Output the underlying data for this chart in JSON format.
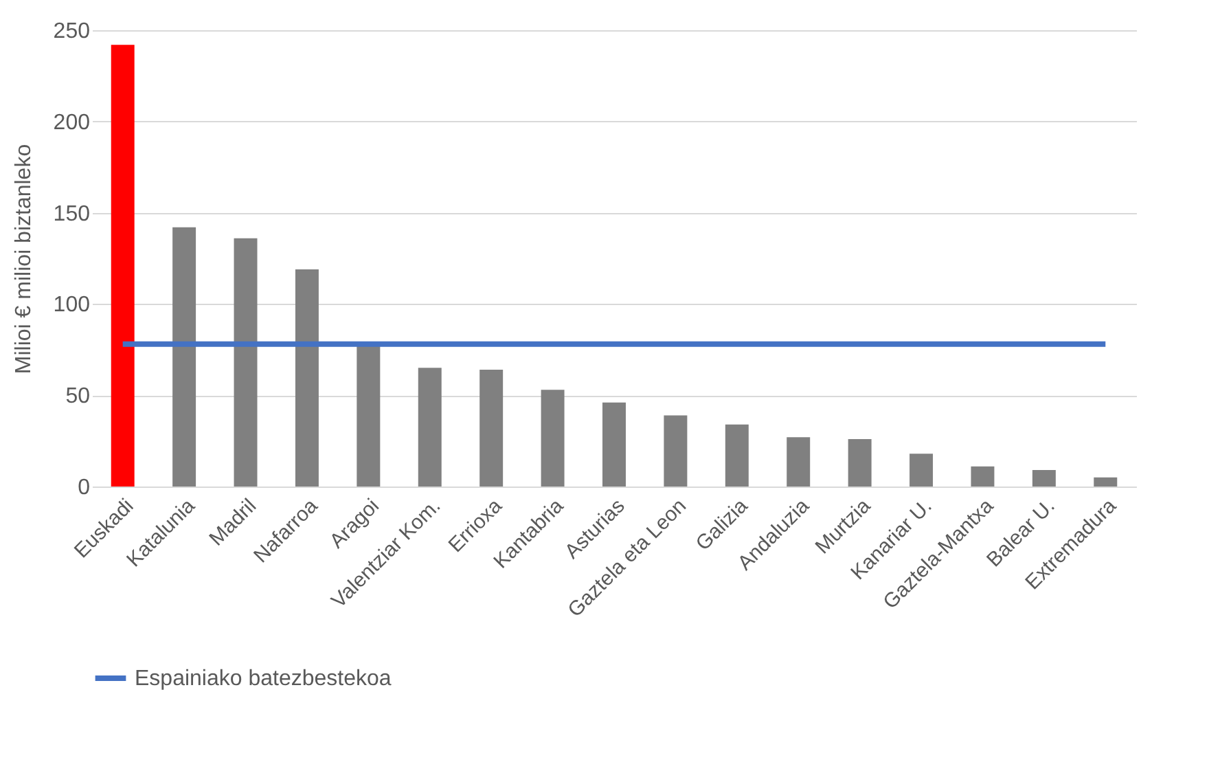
{
  "chart_data": {
    "type": "bar",
    "ylabel": "Milioi € milioi biztanleko",
    "categories": [
      "Euskadi",
      "Katalunia",
      "Madril",
      "Nafarroa",
      "Aragoi",
      "Valentziar Kom.",
      "Errioxa",
      "Kantabria",
      "Asturias",
      "Gaztela eta Leon",
      "Galizia",
      "Andaluzia",
      "Murtzia",
      "Kanariar U.",
      "Gaztela-Mantxa",
      "Balear U.",
      "Extremadura"
    ],
    "series": [
      {
        "colors": [
          "#ff0000",
          "#808080",
          "#808080",
          "#808080",
          "#808080",
          "#808080",
          "#808080",
          "#808080",
          "#808080",
          "#808080",
          "#808080",
          "#808080",
          "#808080",
          "#808080",
          "#808080",
          "#808080",
          "#808080"
        ],
        "values": [
          242,
          142,
          136,
          119,
          77,
          65,
          64,
          53,
          46,
          39,
          34,
          27,
          26,
          18,
          11,
          9,
          5
        ]
      },
      {
        "type": "line",
        "name": "Espainiako batezbestekoa",
        "color": "#4472c4",
        "values": [
          78,
          78,
          78,
          78,
          78,
          78,
          78,
          78,
          78,
          78,
          78,
          78,
          78,
          78,
          78,
          78,
          78
        ]
      }
    ],
    "ylim": [
      0,
      250
    ],
    "yticks": [
      0,
      50,
      100,
      150,
      200,
      250
    ],
    "grid": "y",
    "legend": "bottom"
  }
}
